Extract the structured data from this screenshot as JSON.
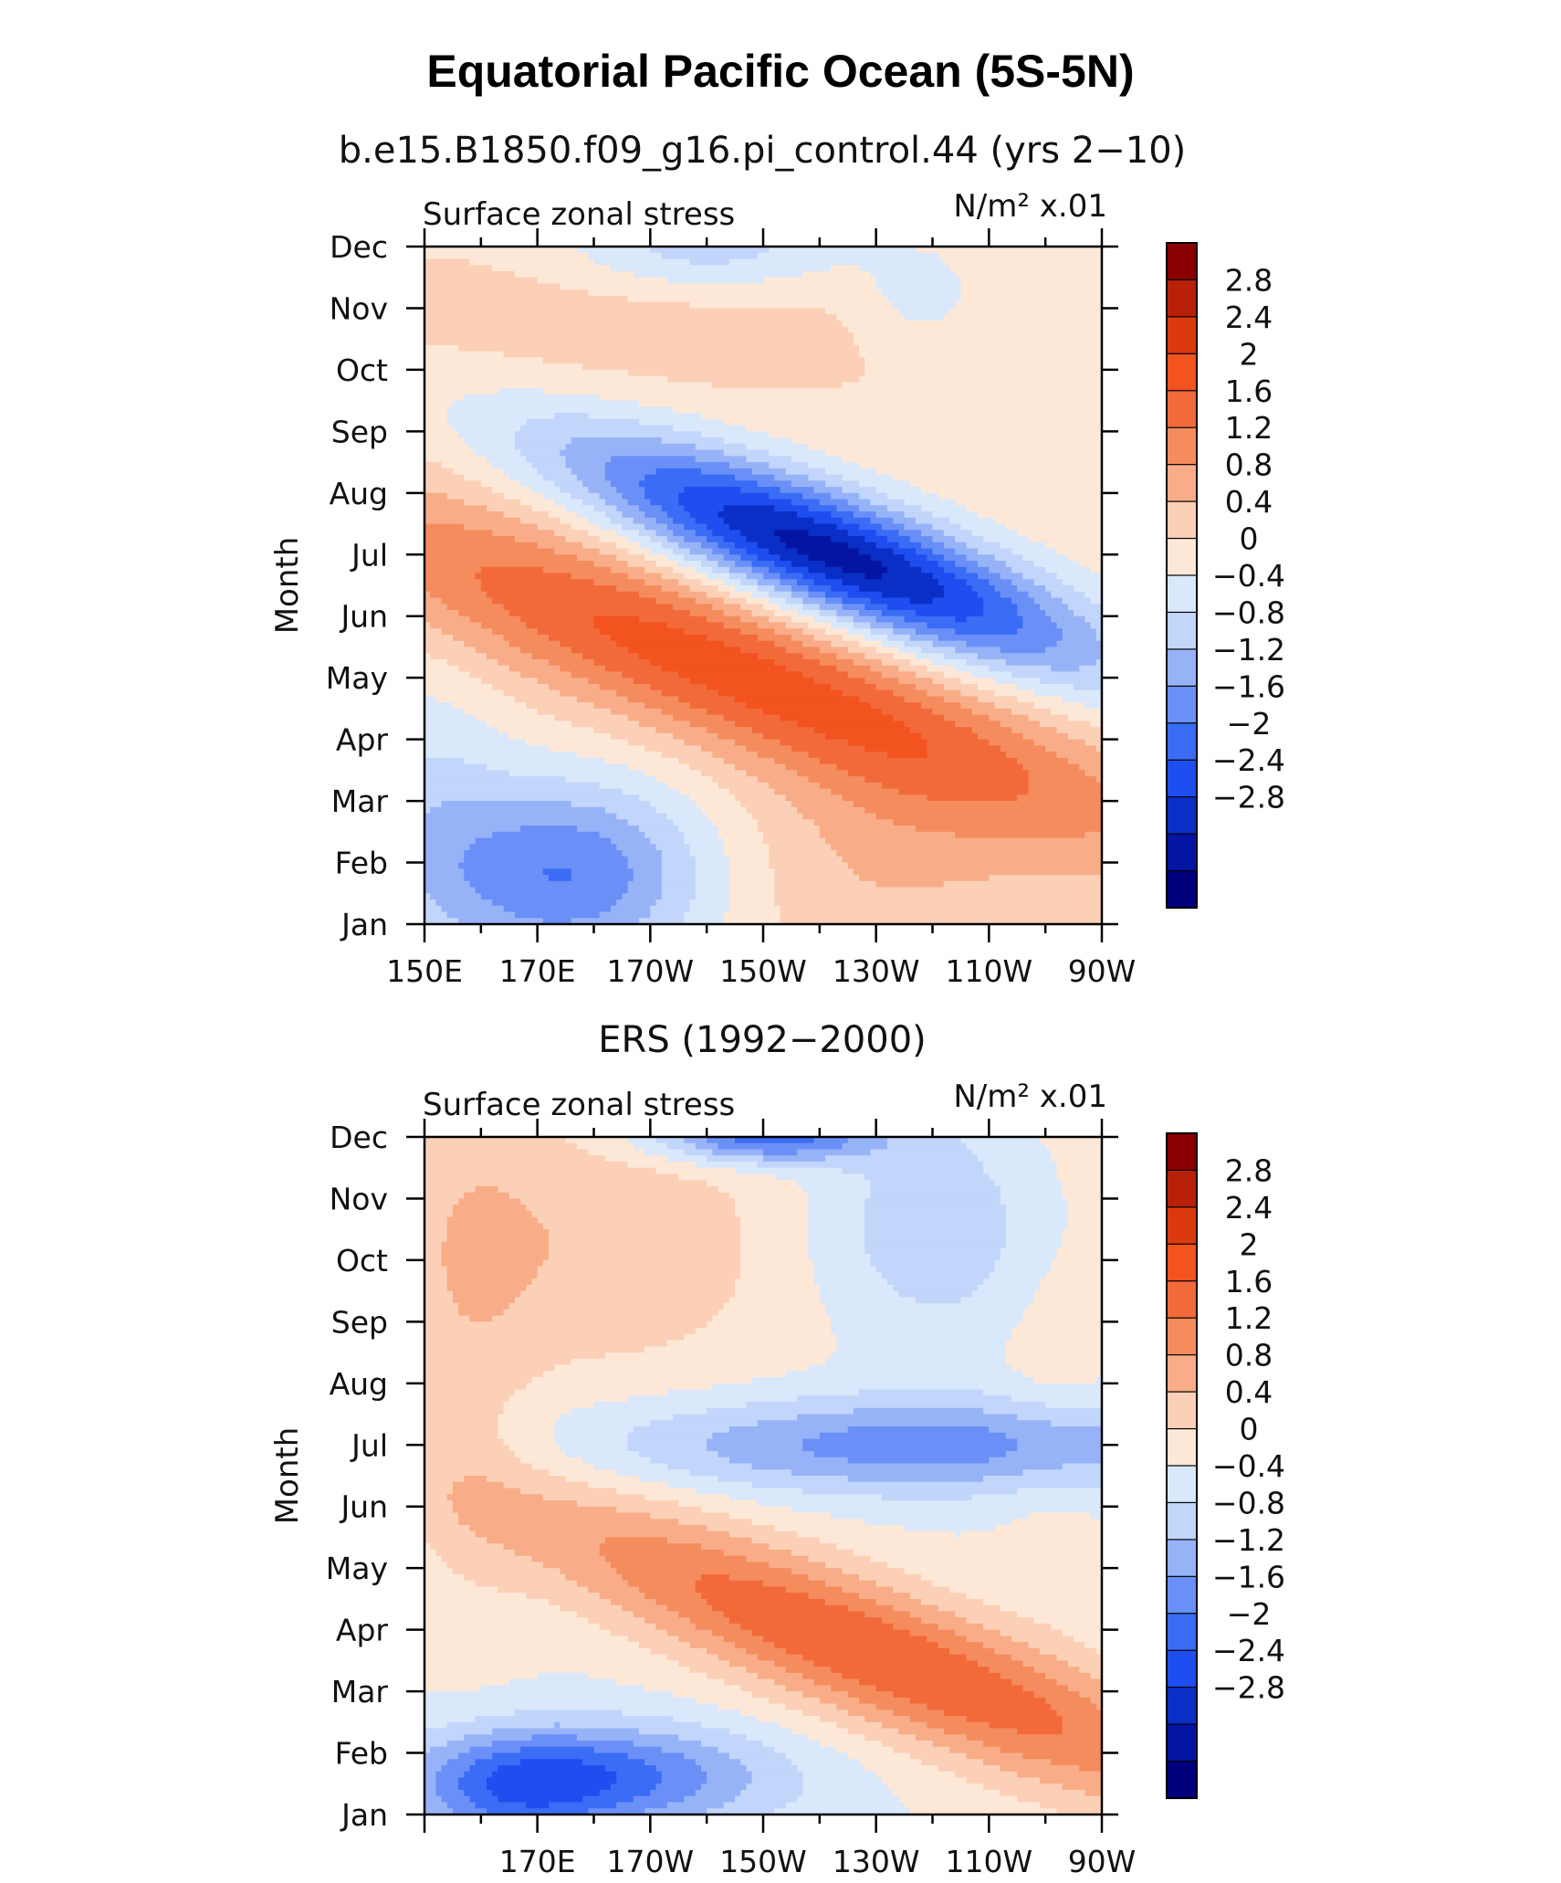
{
  "title": "Equatorial Pacific Ocean (5S-5N)",
  "colors": {
    "levels_colors": [
      "#00007f",
      "#0515a3",
      "#0a2fc7",
      "#1e4df0",
      "#3a6cf5",
      "#6a90f7",
      "#97b3f8",
      "#c2d5fa",
      "#dae8fb",
      "#fde8d8",
      "#fbd0b6",
      "#f8ad88",
      "#f58c5e",
      "#f36a3a",
      "#f2531f",
      "#dc3a0e",
      "#b8200a",
      "#8a0000"
    ]
  },
  "chart_data": [
    {
      "type": "contour",
      "subtitle": "b.e15.B1850.f09_g16.pi_control.44 (yrs 2−10)",
      "left_label": "Surface zonal stress",
      "units_label": "N/m² x.01",
      "ylabel": "Month",
      "xlabel": "",
      "y_ticks": [
        "Jan",
        "Feb",
        "Mar",
        "Apr",
        "May",
        "Jun",
        "Jul",
        "Aug",
        "Sep",
        "Oct",
        "Nov",
        "Dec"
      ],
      "x_ticks": [
        "150E",
        "170E",
        "170W",
        "150W",
        "130W",
        "110W",
        "90W"
      ],
      "x_range": [
        150,
        270
      ],
      "y_range": [
        1,
        12
      ],
      "colorbar_labels": [
        "2.8",
        "2.4",
        "2",
        "1.6",
        "1.2",
        "0.8",
        "0.4",
        "0",
        "−0.4",
        "−0.8",
        "−1.2",
        "−1.6",
        "−2",
        "−2.4",
        "−2.8"
      ],
      "features": [
        {
          "name": "negative-minimum",
          "lon": 225,
          "month": 7,
          "value": -3.0
        },
        {
          "name": "positive-maximum",
          "lon": 212,
          "month": 5,
          "value": 1.8
        },
        {
          "name": "negative-jan-west",
          "lon": 170,
          "month": 1.5,
          "value": -1.6
        },
        {
          "name": "negative-dec-center",
          "lon": 200,
          "month": 12,
          "value": -0.8
        }
      ]
    },
    {
      "type": "contour",
      "subtitle": "ERS (1992−2000)",
      "left_label": "Surface zonal stress",
      "units_label": "N/m² x.01",
      "ylabel": "Month",
      "xlabel": "",
      "y_ticks": [
        "Jan",
        "Feb",
        "Mar",
        "Apr",
        "May",
        "Jun",
        "Jul",
        "Aug",
        "Sep",
        "Oct",
        "Nov",
        "Dec"
      ],
      "x_ticks": [
        "170E",
        "170W",
        "150W",
        "130W",
        "110W",
        "90W"
      ],
      "x_range": [
        150,
        270
      ],
      "y_range": [
        1,
        12
      ],
      "colorbar_labels": [
        "2.8",
        "2.4",
        "2",
        "1.6",
        "1.2",
        "0.8",
        "0.4",
        "0",
        "−0.4",
        "−0.8",
        "−1.2",
        "−1.6",
        "−2",
        "−2.4",
        "−2.8"
      ],
      "features": [
        {
          "name": "positive-maximum",
          "lon": 235,
          "month": 3,
          "value": 2.0
        },
        {
          "name": "negative-jul-east",
          "lon": 240,
          "month": 7,
          "value": -1.4
        },
        {
          "name": "negative-feb-west",
          "lon": 180,
          "month": 1.6,
          "value": -1.6
        },
        {
          "name": "negative-dec-center",
          "lon": 210,
          "month": 12,
          "value": -1.8
        }
      ]
    }
  ]
}
